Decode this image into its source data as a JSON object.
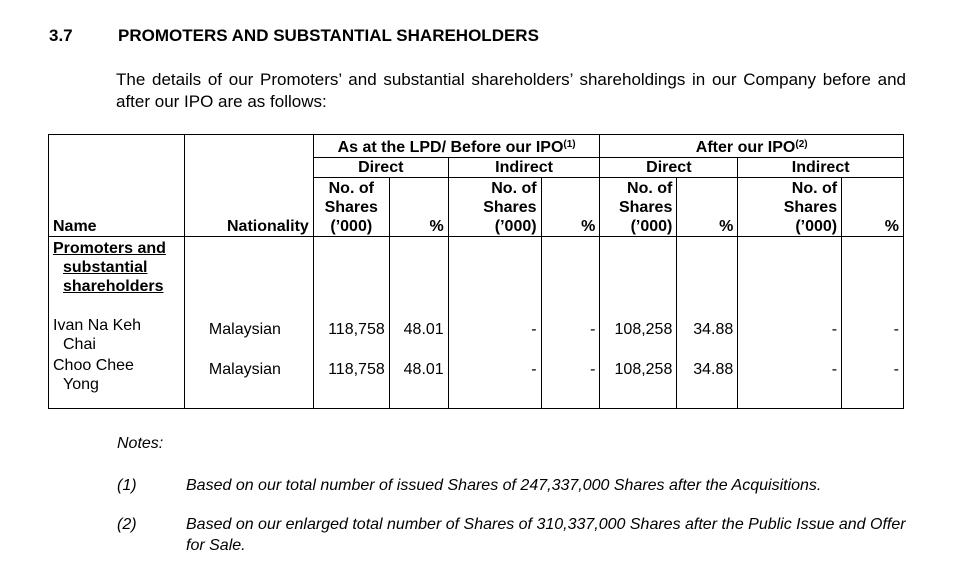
{
  "section": {
    "number": "3.7",
    "title": "PROMOTERS AND SUBSTANTIAL SHAREHOLDERS"
  },
  "intro": "The details of our Promoters’ and substantial shareholders’ shareholdings in our Company before and after our IPO are as follows:",
  "table": {
    "headers": {
      "name": "Name",
      "nationality": "Nationality",
      "before_group": "As at the LPD/ Before our IPO",
      "before_note": "(1)",
      "after_group": "After our IPO",
      "after_note": "(2)",
      "direct": "Direct",
      "indirect": "Indirect",
      "shares_l1": "No. of",
      "shares_l2": "Shares",
      "shares_l3": "(’000)",
      "percent": "%"
    },
    "group_label_l1": "Promoters and",
    "group_label_l2": "substantial",
    "group_label_l3": "shareholders",
    "rows": [
      {
        "name_l1": "Ivan Na Keh",
        "name_l2": "Chai",
        "nationality": "Malaysian",
        "before_direct_shares": "118,758",
        "before_direct_pct": "48.01",
        "before_indirect_shares": "-",
        "before_indirect_pct": "-",
        "after_direct_shares": "108,258",
        "after_direct_pct": "34.88",
        "after_indirect_shares": "-",
        "after_indirect_pct": "-"
      },
      {
        "name_l1": "Choo Chee",
        "name_l2": "Yong",
        "nationality": "Malaysian",
        "before_direct_shares": "118,758",
        "before_direct_pct": "48.01",
        "before_indirect_shares": "-",
        "before_indirect_pct": "-",
        "after_direct_shares": "108,258",
        "after_direct_pct": "34.88",
        "after_indirect_shares": "-",
        "after_indirect_pct": "-"
      }
    ]
  },
  "notes": {
    "title": "Notes:",
    "items": [
      {
        "num": "(1)",
        "text": "Based on our total number of issued Shares of 247,337,000 Shares after the Acquisitions."
      },
      {
        "num": "(2)",
        "text": "Based on our enlarged total number of Shares of 310,337,000 Shares after the Public Issue and Offer for Sale."
      }
    ]
  }
}
